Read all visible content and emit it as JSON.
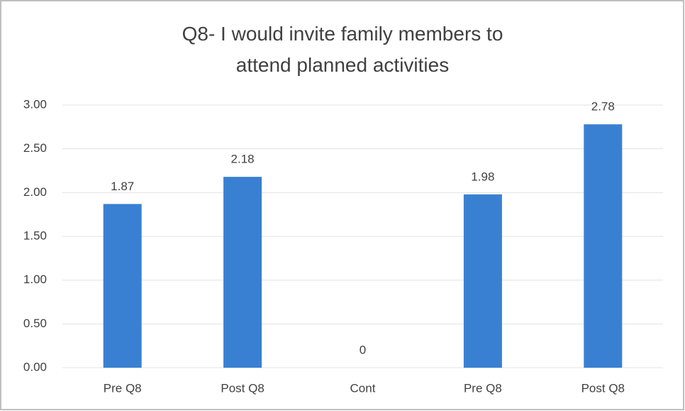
{
  "chart_data": {
    "type": "bar",
    "title": "Q8- I would invite family members to attend planned activities",
    "categories": [
      "Pre Q8",
      "Post Q8",
      "Cont",
      "Pre Q8",
      "Post Q8"
    ],
    "values": [
      1.87,
      2.18,
      0,
      1.98,
      2.78
    ],
    "color": "#3a80d2",
    "ylim": [
      0,
      3
    ],
    "yticks": [
      {
        "value": 0,
        "label": "0.00"
      },
      {
        "value": 0.5,
        "label": "0.50"
      },
      {
        "value": 1,
        "label": "1.00"
      },
      {
        "value": 1.5,
        "label": "1.50"
      },
      {
        "value": 2,
        "label": "2.00"
      },
      {
        "value": 2.5,
        "label": "2.50"
      },
      {
        "value": 3,
        "label": "3.00"
      }
    ],
    "grid": true
  }
}
